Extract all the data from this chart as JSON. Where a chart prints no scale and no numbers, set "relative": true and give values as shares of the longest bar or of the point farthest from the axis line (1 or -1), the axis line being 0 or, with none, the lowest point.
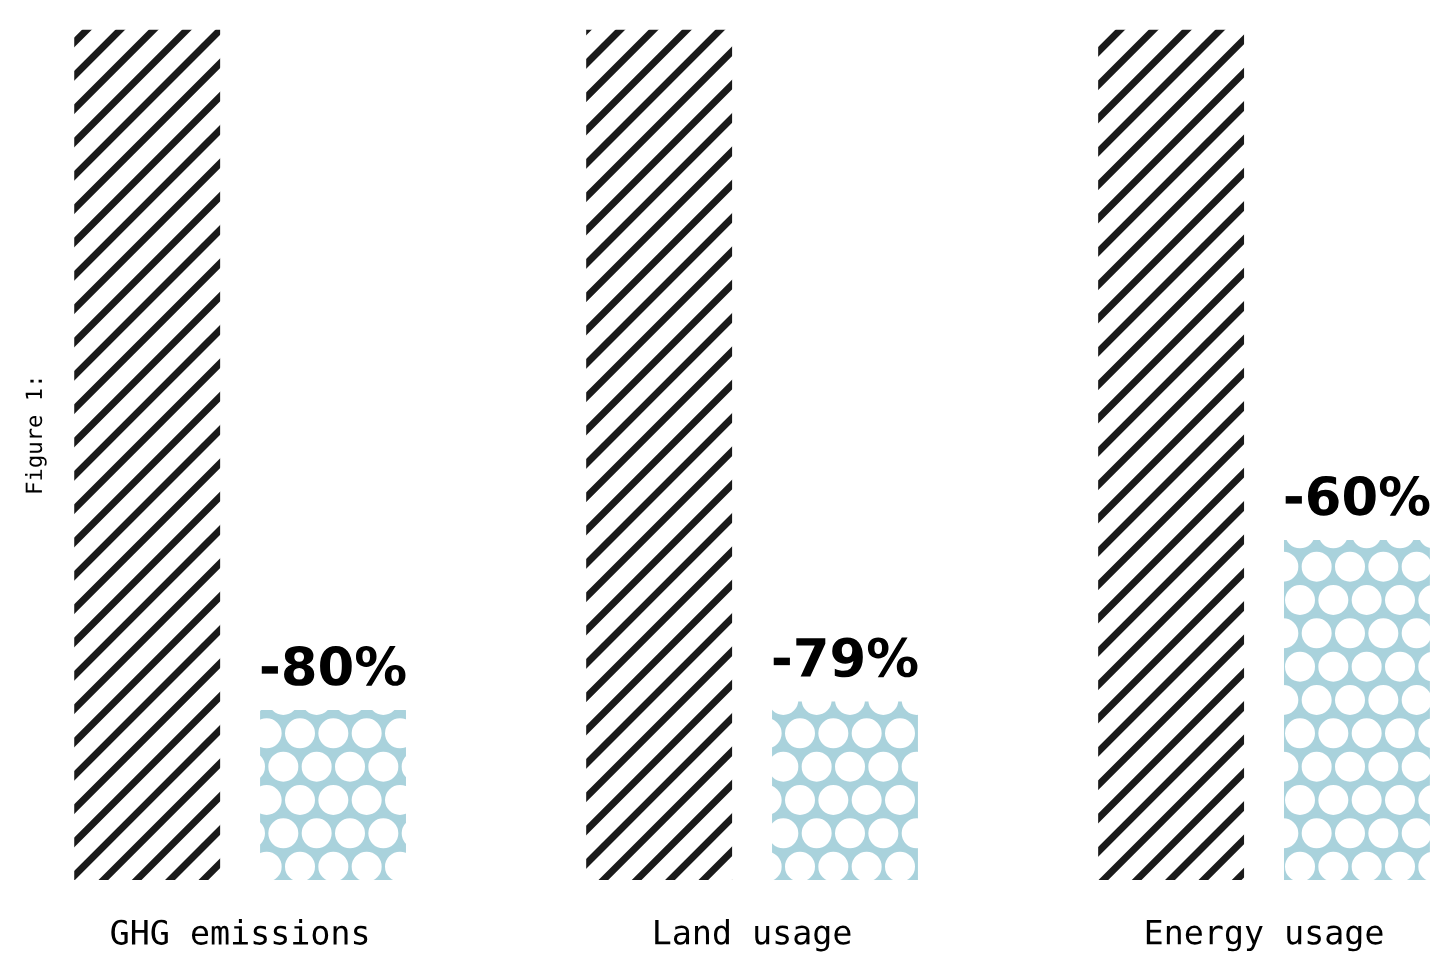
{
  "chart_data": {
    "type": "bar",
    "relative": true,
    "categories": [
      "GHG emissions",
      "Land usage",
      "Energy usage"
    ],
    "series": [
      {
        "color": "#1a1a1a",
        "values": [
          1,
          1,
          1
        ]
      },
      {
        "color": "#a9d2dc",
        "values": [
          0.2,
          0.21,
          0.4
        ]
      }
    ],
    "annotations": [
      "Figure 1:",
      "-80%",
      "-79%",
      "-60%"
    ],
    "grid": false,
    "legend": false
  }
}
